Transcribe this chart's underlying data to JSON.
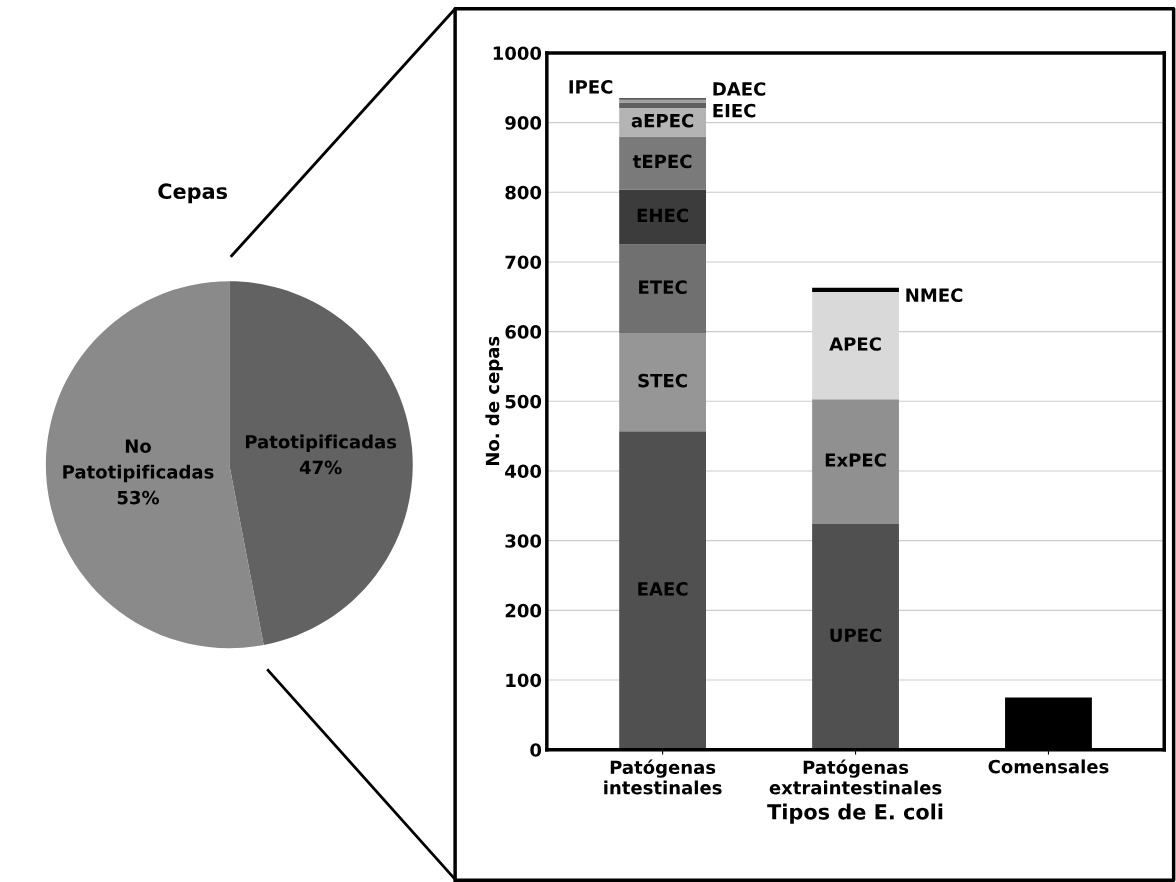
{
  "chart_data": [
    {
      "type": "pie",
      "title": "Cepas",
      "categories": [
        "Patotipificadas",
        "No\nPatotipificadas"
      ],
      "values": [
        47,
        53
      ],
      "colors": [
        "#626262",
        "#8a8a8a"
      ],
      "value_labels": [
        "47%",
        "53%"
      ]
    },
    {
      "type": "bar",
      "stacked": true,
      "categories": [
        "Patógenas\nintestinales",
        "Patógenas\nextraintestinales",
        "Comensales"
      ],
      "xlabel": "Tipos de E. coli",
      "ylabel": "No. de cepas",
      "ylim": [
        0,
        1000
      ],
      "yticks": [
        0,
        100,
        200,
        300,
        400,
        500,
        600,
        700,
        800,
        900,
        1000
      ],
      "grid": "y",
      "series": [
        {
          "name": "EAEC",
          "color": "#505050",
          "values": [
            457,
            null,
            null
          ]
        },
        {
          "name": "STEC",
          "color": "#969696",
          "values": [
            141,
            null,
            null
          ]
        },
        {
          "name": "ETEC",
          "color": "#707070",
          "values": [
            127,
            null,
            null
          ]
        },
        {
          "name": "EHEC",
          "color": "#3c3c3c",
          "values": [
            79,
            null,
            null
          ]
        },
        {
          "name": "tEPEC",
          "color": "#7a7a7a",
          "values": [
            76,
            null,
            null
          ]
        },
        {
          "name": "aEPEC",
          "color": "#b4b4b4",
          "values": [
            41,
            null,
            null
          ]
        },
        {
          "name": "EIEC",
          "color": "#606060",
          "values": [
            8,
            null,
            null
          ]
        },
        {
          "name": "IPEC",
          "color": "#a0a0a0",
          "values": [
            4,
            null,
            null
          ]
        },
        {
          "name": "DAEC",
          "color": "#202020",
          "values": [
            2,
            null,
            null
          ]
        },
        {
          "name": "UPEC",
          "color": "#505050",
          "values": [
            null,
            324,
            null
          ]
        },
        {
          "name": "ExPEC",
          "color": "#909090",
          "values": [
            null,
            179,
            null
          ]
        },
        {
          "name": "APEC",
          "color": "#d9d9d9",
          "values": [
            null,
            154,
            null
          ]
        },
        {
          "name": "NMEC",
          "color": "#000000",
          "values": [
            null,
            6,
            null
          ]
        },
        {
          "color": "#000000",
          "values": [
            null,
            null,
            75
          ]
        }
      ]
    }
  ]
}
